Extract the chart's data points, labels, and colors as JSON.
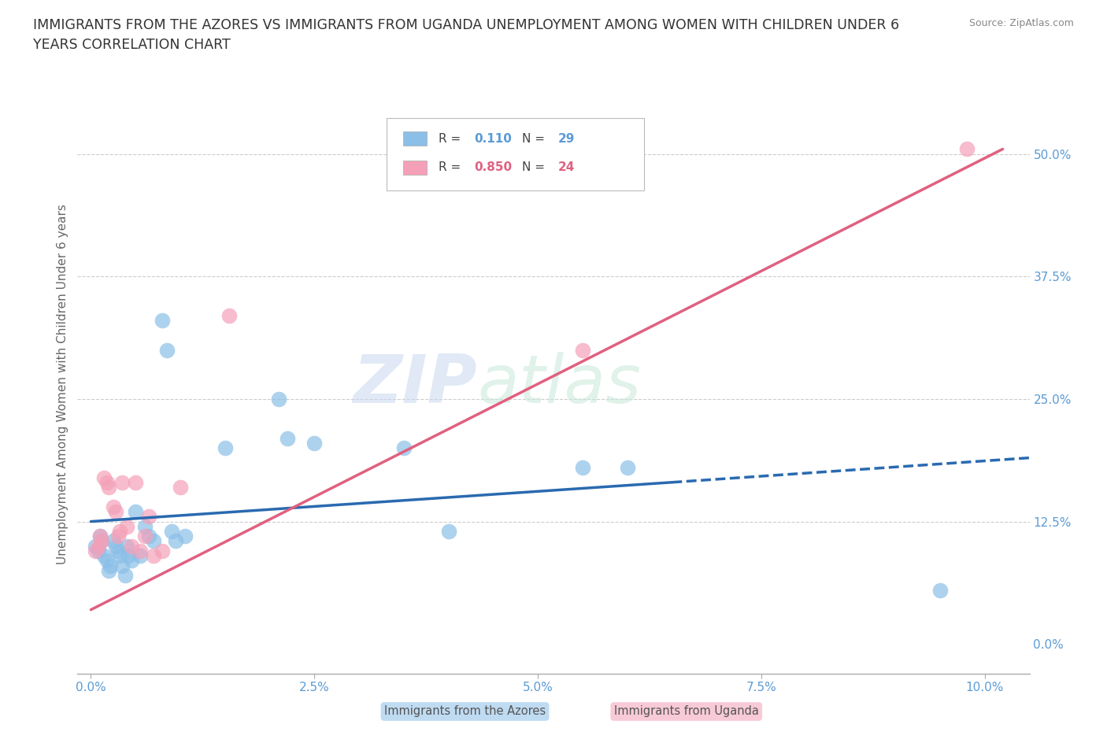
{
  "title": "IMMIGRANTS FROM THE AZORES VS IMMIGRANTS FROM UGANDA UNEMPLOYMENT AMONG WOMEN WITH CHILDREN UNDER 6\nYEARS CORRELATION CHART",
  "source": "Source: ZipAtlas.com",
  "xlabel_vals": [
    0.0,
    2.5,
    5.0,
    7.5,
    10.0
  ],
  "ylabel_vals": [
    0.0,
    12.5,
    25.0,
    37.5,
    50.0
  ],
  "xlim": [
    -0.15,
    10.5
  ],
  "ylim": [
    -3,
    56
  ],
  "watermark_zip": "ZIP",
  "watermark_atlas": "atlas",
  "azores_color": "#8bbfe8",
  "uganda_color": "#f4a0b8",
  "azores_line_color": "#2a6ab0",
  "uganda_line_color": "#e06080",
  "azores_x": [
    0.05,
    0.08,
    0.1,
    0.12,
    0.15,
    0.18,
    0.2,
    0.22,
    0.25,
    0.28,
    0.3,
    0.32,
    0.35,
    0.38,
    0.4,
    0.42,
    0.45,
    0.5,
    0.55,
    0.6,
    0.65,
    0.7,
    0.8,
    0.85,
    0.9,
    0.95,
    1.05,
    1.5,
    2.1,
    2.2,
    2.5,
    3.5,
    4.0,
    5.5,
    6.0,
    9.5
  ],
  "azores_y": [
    10.0,
    9.5,
    11.0,
    10.5,
    9.0,
    8.5,
    7.5,
    8.0,
    10.5,
    10.0,
    9.5,
    9.0,
    8.0,
    7.0,
    10.0,
    9.0,
    8.5,
    13.5,
    9.0,
    12.0,
    11.0,
    10.5,
    33.0,
    30.0,
    11.5,
    10.5,
    11.0,
    20.0,
    25.0,
    21.0,
    20.5,
    20.0,
    11.5,
    18.0,
    18.0,
    5.5
  ],
  "uganda_x": [
    0.05,
    0.08,
    0.1,
    0.12,
    0.15,
    0.18,
    0.2,
    0.25,
    0.28,
    0.3,
    0.32,
    0.35,
    0.4,
    0.45,
    0.5,
    0.55,
    0.6,
    0.65,
    0.7,
    0.8,
    1.0,
    1.55,
    5.5,
    9.8
  ],
  "uganda_y": [
    9.5,
    10.0,
    11.0,
    10.5,
    17.0,
    16.5,
    16.0,
    14.0,
    13.5,
    11.0,
    11.5,
    16.5,
    12.0,
    10.0,
    16.5,
    9.5,
    11.0,
    13.0,
    9.0,
    9.5,
    16.0,
    33.5,
    30.0,
    50.5
  ],
  "azores_reg_x0": 0.0,
  "azores_reg_y0": 12.5,
  "azores_reg_x1": 6.5,
  "azores_reg_y1": 16.5,
  "azores_dash_x0": 6.5,
  "azores_dash_y0": 16.5,
  "azores_dash_x1": 10.5,
  "azores_dash_y1": 19.0,
  "uganda_reg_x0": 0.0,
  "uganda_reg_y0": 3.5,
  "uganda_reg_x1": 10.2,
  "uganda_reg_y1": 50.5,
  "grid_color": "#cccccc",
  "bg_color": "#ffffff",
  "axis_label_color": "#5b9bd5",
  "title_color": "#333333",
  "label_fontsize": 11,
  "tick_fontsize": 11
}
